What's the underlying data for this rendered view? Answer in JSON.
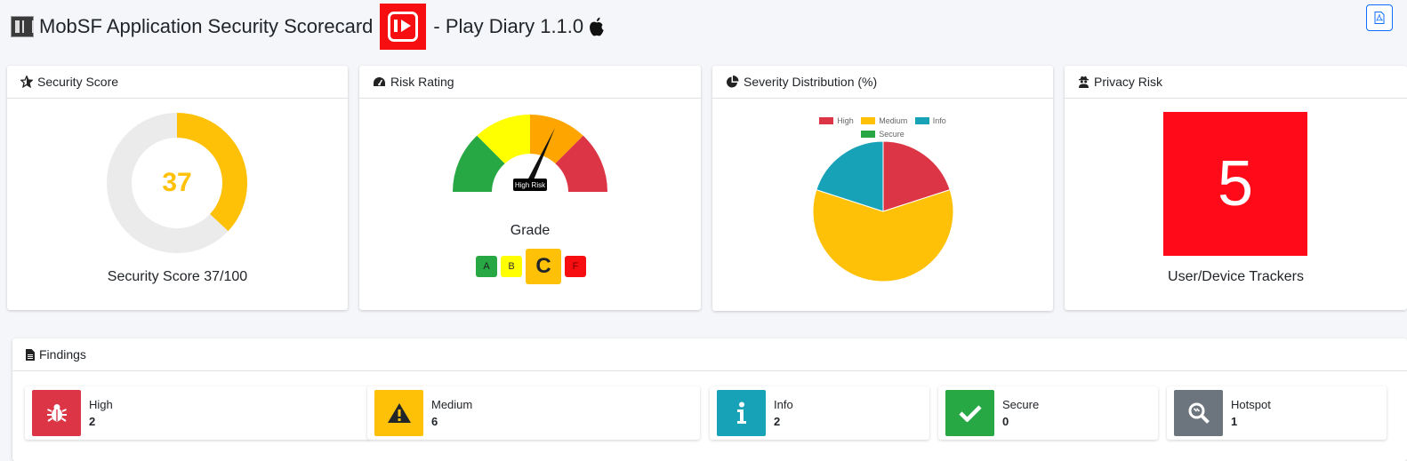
{
  "header": {
    "title": "MobSF Application Security Scorecard",
    "app_name": "- Play Diary 1.1.0"
  },
  "cards": {
    "security_score": {
      "title": "Security Score",
      "score": "37",
      "score_value": 37,
      "score_max": 100,
      "label": "Security Score 37/100"
    },
    "risk_rating": {
      "title": "Risk Rating",
      "needle_label": "High Risk",
      "grade_label": "Grade",
      "grades": [
        "A",
        "B",
        "C",
        "F"
      ],
      "selected_grade": "C"
    },
    "severity": {
      "title": "Severity Distribution (%)",
      "legend": [
        "High",
        "Medium",
        "Info",
        "Secure"
      ]
    },
    "privacy": {
      "title": "Privacy Risk",
      "trackers": "5",
      "label": "User/Device Trackers"
    }
  },
  "chart_data": {
    "type": "pie",
    "categories": [
      "High",
      "Medium",
      "Info",
      "Secure"
    ],
    "values": [
      20,
      60,
      20,
      0
    ],
    "colors": [
      "#dc3545",
      "#ffc107",
      "#17a2b8",
      "#28a745"
    ],
    "legend_position": "top"
  },
  "findings": {
    "title": "Findings",
    "items": [
      {
        "label": "High",
        "count": "2",
        "color": "#dc3545",
        "icon": "bug-icon"
      },
      {
        "label": "Medium",
        "count": "6",
        "color": "#ffc107",
        "icon": "warning-icon"
      },
      {
        "label": "Info",
        "count": "2",
        "color": "#17a2b8",
        "icon": "info-icon"
      },
      {
        "label": "Secure",
        "count": "0",
        "color": "#28a745",
        "icon": "check-icon"
      },
      {
        "label": "Hotspot",
        "count": "1",
        "color": "#6c757d",
        "icon": "magnify-icon"
      }
    ]
  }
}
